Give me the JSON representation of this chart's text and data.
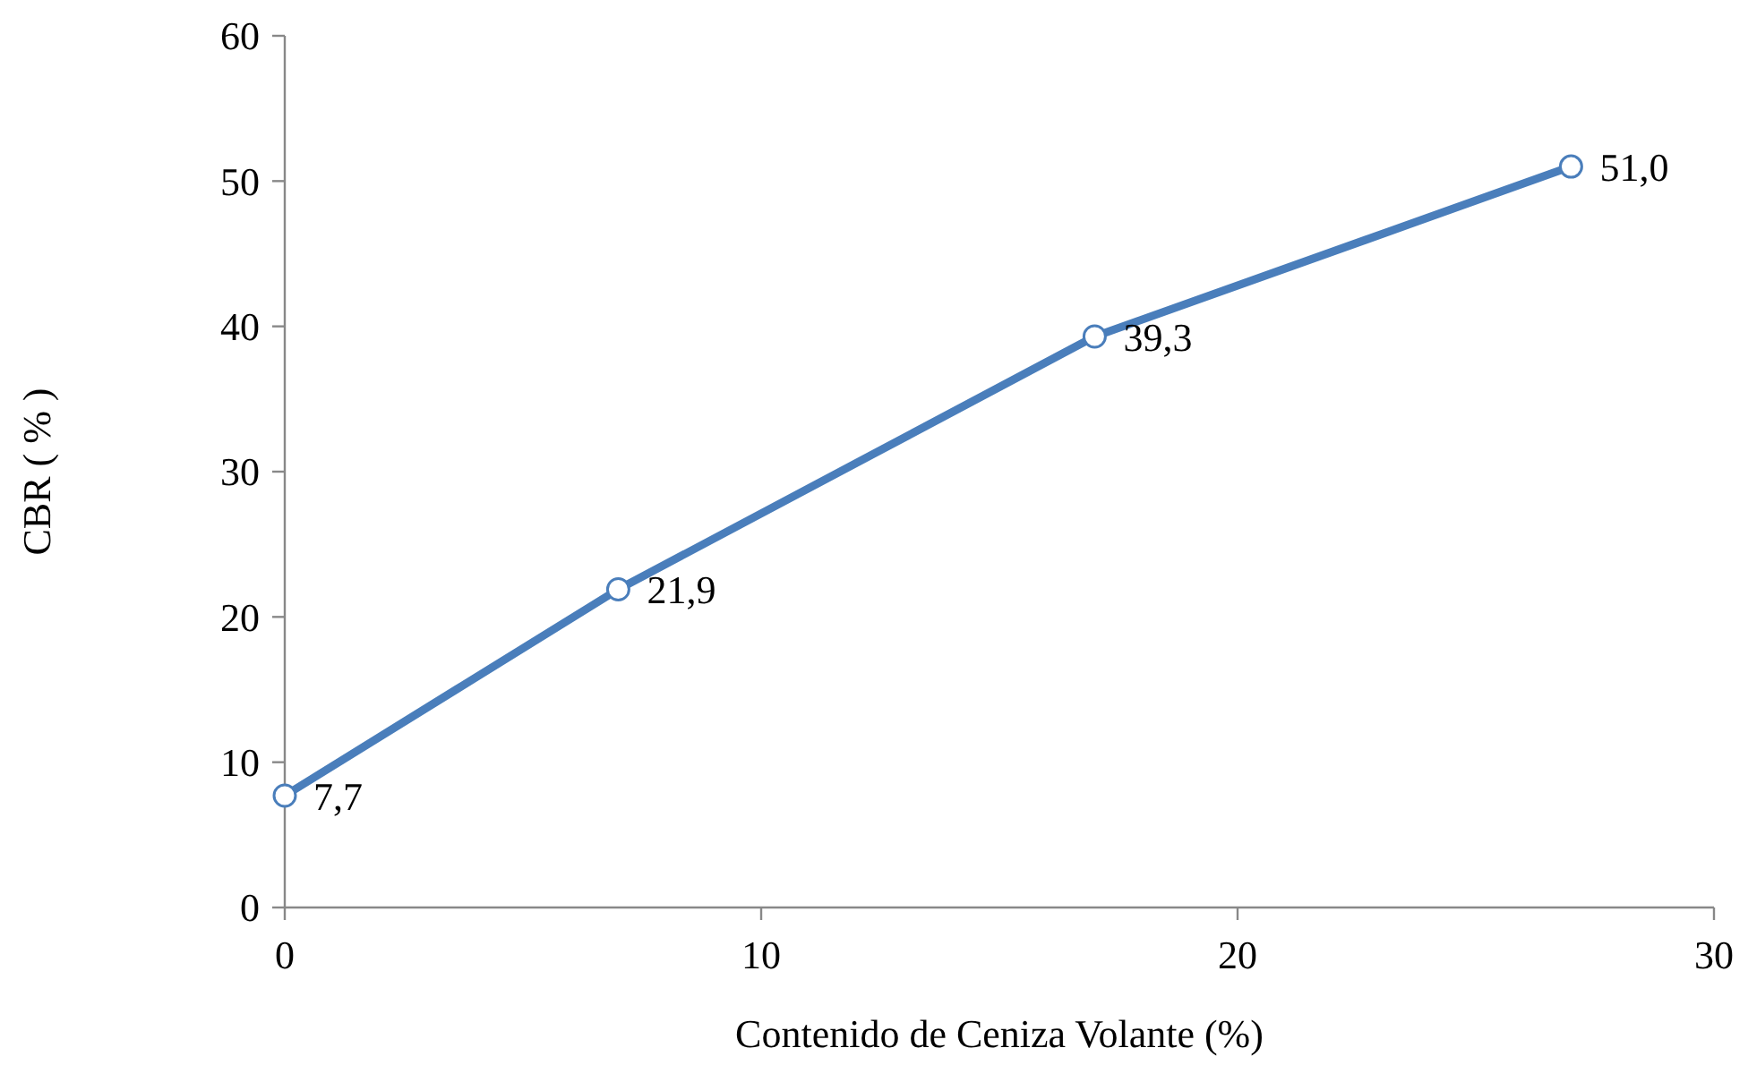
{
  "chart_data": {
    "type": "line",
    "xlabel": "Contenido de Ceniza Volante (%)",
    "ylabel": "CBR ( % )",
    "x": [
      0,
      7,
      17,
      27
    ],
    "series": [
      {
        "color": "#4a7ebb",
        "values": [
          7.7,
          21.9,
          39.3,
          51.0
        ],
        "value_labels": [
          "7,7",
          "21,9",
          "39,3",
          "51,0"
        ]
      }
    ],
    "xlim": [
      0,
      30
    ],
    "xticks": [
      0,
      10,
      20,
      30
    ],
    "ylim": [
      0,
      60
    ],
    "yticks": [
      0,
      10,
      20,
      30,
      40,
      50,
      60
    ],
    "marker": "circle",
    "line_style": "solid"
  }
}
